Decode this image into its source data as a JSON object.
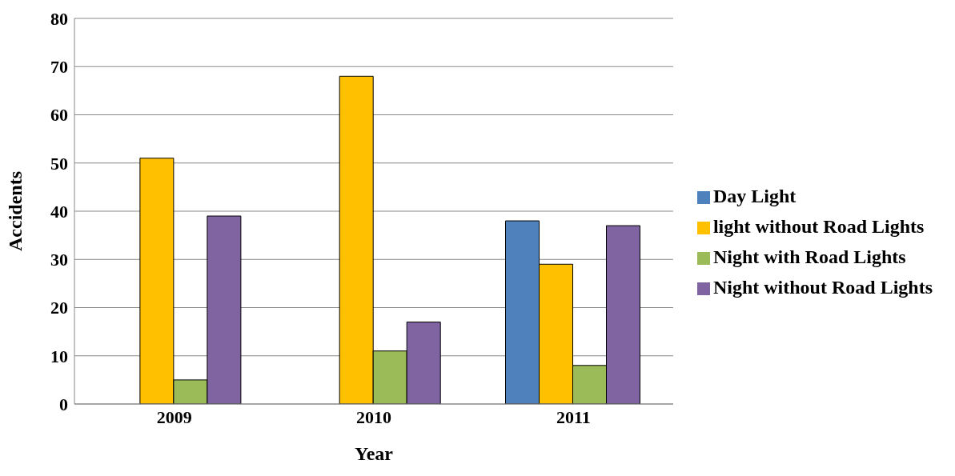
{
  "chart_data": {
    "type": "bar",
    "xlabel": "Year",
    "ylabel": "Accidents",
    "categories": [
      "2009",
      "2010",
      "2011"
    ],
    "series": [
      {
        "name": "Day Light",
        "color": "#4f81bd",
        "values": [
          null,
          null,
          38
        ]
      },
      {
        "name": "light without Road Lights",
        "color": "#ffc000",
        "values": [
          51,
          68,
          29
        ]
      },
      {
        "name": "Night with Road Lights",
        "color": "#9bbb59",
        "values": [
          5,
          11,
          8
        ]
      },
      {
        "name": "Night without Road Lights",
        "color": "#8064a2",
        "values": [
          39,
          17,
          37
        ]
      }
    ],
    "ylim": [
      0,
      80
    ],
    "yticks": [
      0,
      10,
      20,
      30,
      40,
      50,
      60,
      70,
      80
    ],
    "grid": "y",
    "legend": "right"
  }
}
